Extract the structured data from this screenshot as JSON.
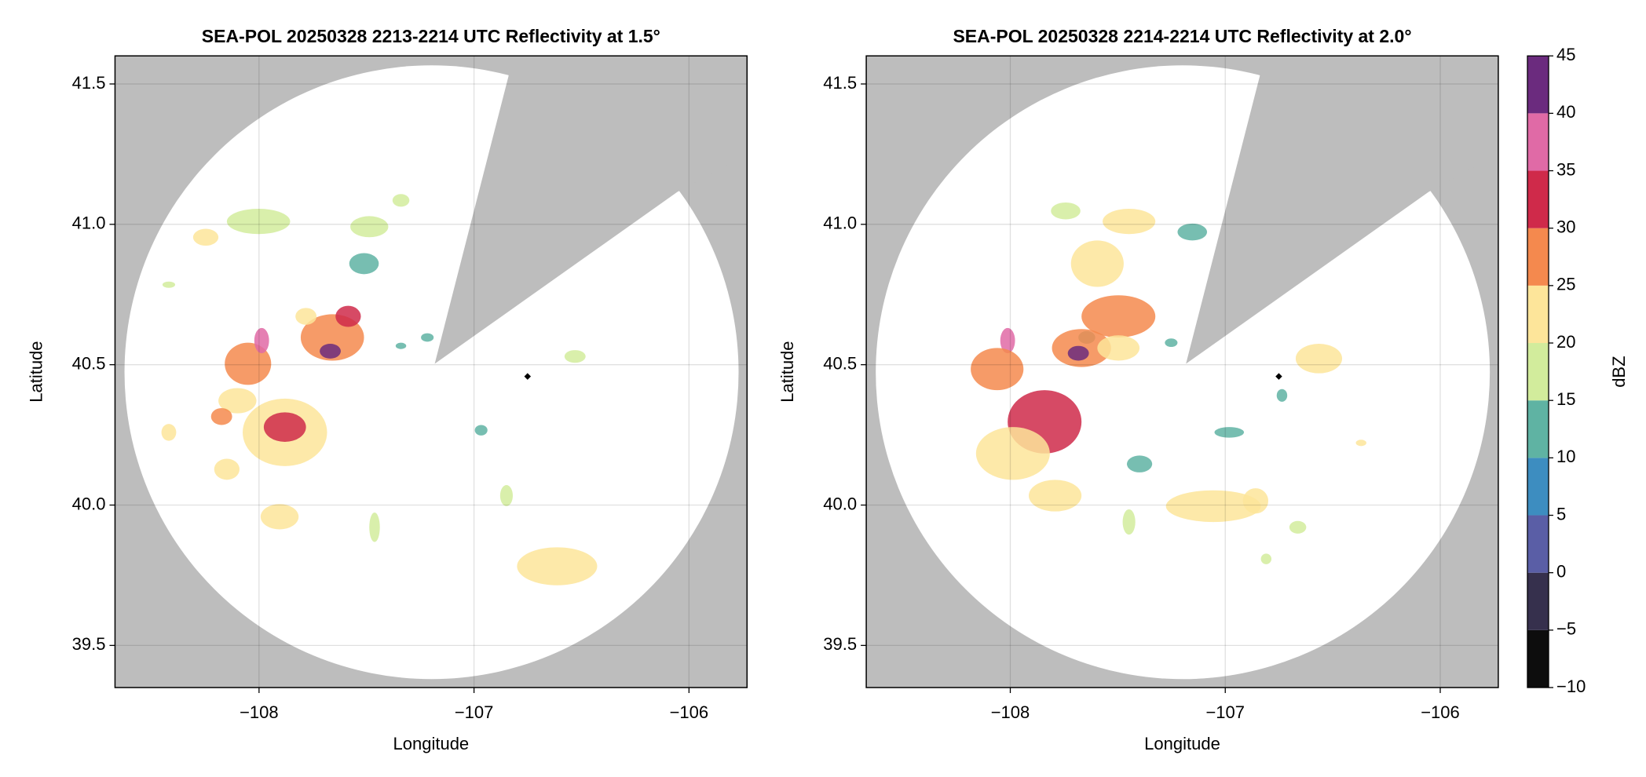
{
  "chart_data": [
    {
      "type": "map",
      "title": "SEA-POL 20250328 2213-2214 UTC Reflectivity at 1.5°",
      "xlabel": "Longitude",
      "ylabel": "Latitude",
      "xlim": [
        -108.67,
        -105.73
      ],
      "ylim": [
        39.35,
        41.6
      ],
      "xticks": [
        {
          "value": -108,
          "label": "−108"
        },
        {
          "value": -107,
          "label": "−107"
        },
        {
          "value": -106,
          "label": "−106"
        }
      ],
      "yticks": [
        {
          "value": 39.5,
          "label": "39.5"
        },
        {
          "value": 40,
          "label": "40.0"
        },
        {
          "value": 40.5,
          "label": "40.5"
        },
        {
          "value": 41,
          "label": "41.0"
        },
        {
          "value": 41.5,
          "label": "41.5"
        }
      ],
      "grid": true
    },
    {
      "type": "map",
      "title": "SEA-POL 20250328 2214-2214 UTC Reflectivity at 2.0°",
      "xlabel": "Longitude",
      "ylabel": "Latitude",
      "xlim": [
        -108.67,
        -105.73
      ],
      "ylim": [
        39.35,
        41.6
      ],
      "xticks": [
        {
          "value": -108,
          "label": "−108"
        },
        {
          "value": -107,
          "label": "−107"
        },
        {
          "value": -106,
          "label": "−106"
        }
      ],
      "yticks": [
        {
          "value": 39.5,
          "label": "39.5"
        },
        {
          "value": 40,
          "label": "40.0"
        },
        {
          "value": 40.5,
          "label": "40.5"
        },
        {
          "value": 41,
          "label": "41.0"
        },
        {
          "value": 41.5,
          "label": "41.5"
        }
      ],
      "grid": true
    }
  ],
  "colorbar": {
    "label": "dBZ",
    "lim": [
      -10,
      45
    ],
    "ticks": [
      {
        "value": -10,
        "label": "−10"
      },
      {
        "value": -5,
        "label": "−5"
      },
      0,
      5,
      10,
      15,
      20,
      25,
      30,
      35,
      40,
      45
    ],
    "colors": [
      "#0d0d0d",
      "#36304d",
      "#5a5ea6",
      "#3d8dc0",
      "#5fb3a3",
      "#d2ec9c",
      "#fde59a",
      "#f4894e",
      "#cf2a4a",
      "#e06aa6",
      "#6b2b7e"
    ]
  }
}
